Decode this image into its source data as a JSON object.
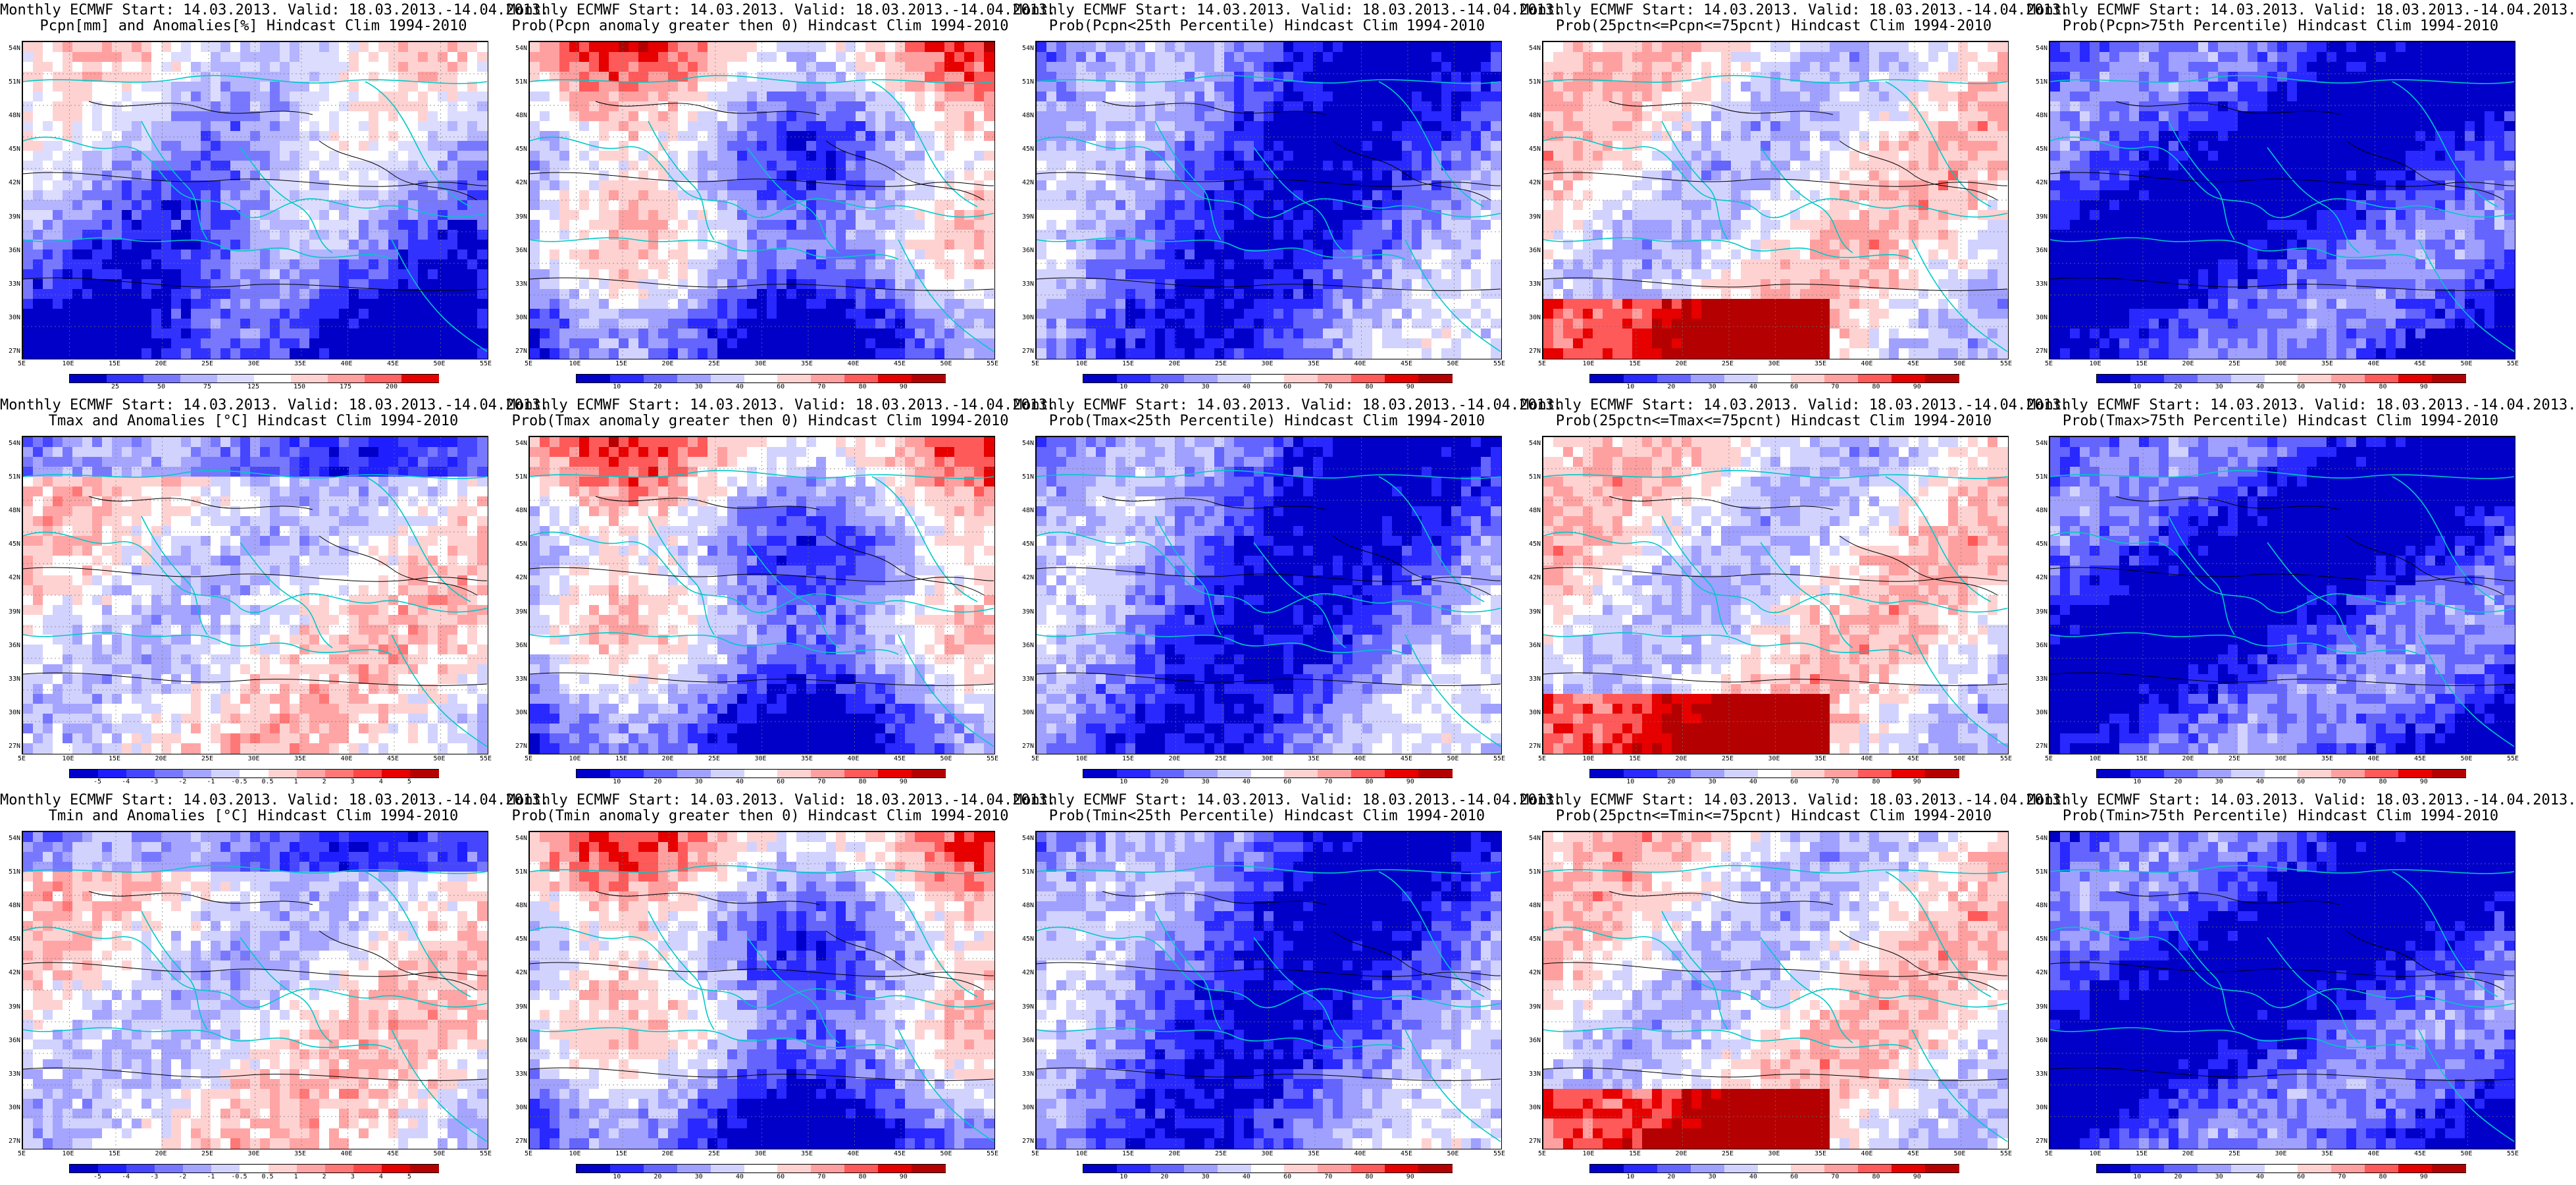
{
  "panels": [
    {
      "id": "p11",
      "line1": "Monthly ECMWF Start: 14.03.2013. Valid: 18.03.2013.-14.04.2013.",
      "line2": "Pcpn[mm] and Anomalies[%] Hindcast Clim 1994-2010",
      "field": "anom",
      "scale": "pcp"
    },
    {
      "id": "p12",
      "line1": "Monthly ECMWF Start: 14.03.2013. Valid: 18.03.2013.-14.04.2013.",
      "line2": "Prob(Pcpn anomaly greater then 0) Hindcast Clim 1994-2010",
      "field": "prob",
      "scale": "prob"
    },
    {
      "id": "p13",
      "line1": "Monthly ECMWF Start: 14.03.2013. Valid: 18.03.2013.-14.04.2013.",
      "line2": "Prob(Pcpn<25th Percentile) Hindcast Clim 1994-2010",
      "field": "low",
      "scale": "prob"
    },
    {
      "id": "p14",
      "line1": "Monthly ECMWF Start: 14.03.2013. Valid: 18.03.2013.-14.04.2013.",
      "line2": "Prob(25pctn<=Pcpn<=75pcnt) Hindcast Clim 1994-2010",
      "field": "mid",
      "scale": "prob"
    },
    {
      "id": "p15",
      "line1": "Monthly ECMWF Start: 14.03.2013. Valid: 18.03.2013.-14.04.2013.",
      "line2": "Prob(Pcpn>75th Percentile) Hindcast Clim 1994-2010",
      "field": "high",
      "scale": "prob"
    },
    {
      "id": "p21",
      "line1": "Monthly ECMWF Start: 14.03.2013. Valid: 18.03.2013.-14.04.2013.",
      "line2": "Tmax and Anomalies [°C] Hindcast Clim 1994-2010",
      "field": "tanom",
      "scale": "temp"
    },
    {
      "id": "p22",
      "line1": "Monthly ECMWF Start: 14.03.2013. Valid: 18.03.2013.-14.04.2013.",
      "line2": "Prob(Tmax anomaly greater then 0) Hindcast Clim 1994-2010",
      "field": "prob",
      "scale": "prob"
    },
    {
      "id": "p23",
      "line1": "Monthly ECMWF Start: 14.03.2013. Valid: 18.03.2013.-14.04.2013.",
      "line2": "Prob(Tmax<25th Percentile) Hindcast Clim 1994-2010",
      "field": "low",
      "scale": "prob"
    },
    {
      "id": "p24",
      "line1": "Monthly ECMWF Start: 14.03.2013. Valid: 18.03.2013.-14.04.2013.",
      "line2": "Prob(25pctn<=Tmax<=75pcnt) Hindcast Clim 1994-2010",
      "field": "mid",
      "scale": "prob"
    },
    {
      "id": "p25",
      "line1": "Monthly ECMWF Start: 14.03.2013. Valid: 18.03.2013.-14.04.2013.",
      "line2": "Prob(Tmax>75th Percentile) Hindcast Clim 1994-2010",
      "field": "high",
      "scale": "prob"
    },
    {
      "id": "p31",
      "line1": "Monthly ECMWF Start: 14.03.2013. Valid: 18.03.2013.-14.04.2013.",
      "line2": "Tmin and Anomalies [°C] Hindcast Clim 1994-2010",
      "field": "tanom",
      "scale": "temp"
    },
    {
      "id": "p32",
      "line1": "Monthly ECMWF Start: 14.03.2013. Valid: 18.03.2013.-14.04.2013.",
      "line2": "Prob(Tmin anomaly greater then 0) Hindcast Clim 1994-2010",
      "field": "prob",
      "scale": "prob"
    },
    {
      "id": "p33",
      "line1": "Monthly ECMWF Start: 14.03.2013. Valid: 18.03.2013.-14.04.2013.",
      "line2": "Prob(Tmin<25th Percentile) Hindcast Clim 1994-2010",
      "field": "low",
      "scale": "prob"
    },
    {
      "id": "p34",
      "line1": "Monthly ECMWF Start: 14.03.2013. Valid: 18.03.2013.-14.04.2013.",
      "line2": "Prob(25pctn<=Tmin<=75pcnt) Hindcast Clim 1994-2010",
      "field": "mid",
      "scale": "prob"
    },
    {
      "id": "p35",
      "line1": "Monthly ECMWF Start: 14.03.2013. Valid: 18.03.2013.-14.04.2013.",
      "line2": "Prob(Tmin>75th Percentile) Hindcast Clim 1994-2010",
      "field": "high",
      "scale": "prob"
    }
  ],
  "axes": {
    "lat_labels": [
      "54N",
      "51N",
      "48N",
      "45N",
      "42N",
      "39N",
      "36N",
      "33N",
      "30N",
      "27N"
    ],
    "lon_labels": [
      "5E",
      "10E",
      "15E",
      "20E",
      "25E",
      "30E",
      "35E",
      "40E",
      "45E",
      "50E",
      "55E"
    ]
  },
  "scales": {
    "pcp": {
      "labels": [
        "25",
        "50",
        "75",
        "125",
        "150",
        "175",
        "200"
      ],
      "colors": [
        "#0000c8",
        "#3232ff",
        "#7878ff",
        "#b4b4ff",
        "#dcdcff",
        "#ffffff",
        "#ffd2d2",
        "#ffa0a0",
        "#ff6464",
        "#e60000"
      ]
    },
    "prob": {
      "labels": [
        "10",
        "20",
        "30",
        "40",
        "60",
        "70",
        "80",
        "90"
      ],
      "colors": [
        "#0000c8",
        "#2828ff",
        "#6464ff",
        "#a0a0ff",
        "#d2d2ff",
        "#ffffff",
        "#ffd2d2",
        "#ffa0a0",
        "#ff5a5a",
        "#e60000",
        "#b40000"
      ]
    },
    "temp": {
      "labels": [
        "-5",
        "-4",
        "-3",
        "-2",
        "-1",
        "-0.5",
        "0.5",
        "1",
        "2",
        "3",
        "4",
        "5"
      ],
      "colors": [
        "#0000c8",
        "#1e1eff",
        "#4646ff",
        "#7878ff",
        "#a5a5ff",
        "#d2d2ff",
        "#ffffff",
        "#ffd2d2",
        "#ffa5a5",
        "#ff7878",
        "#ff4646",
        "#e60000",
        "#b40000"
      ]
    }
  },
  "colors": {
    "coast": "#00c8c8",
    "contour": "#000000",
    "frame": "#000000"
  }
}
